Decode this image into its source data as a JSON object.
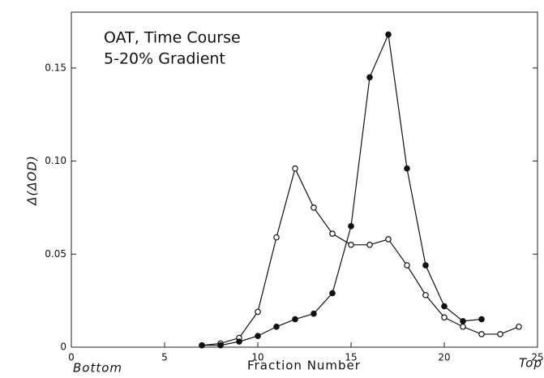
{
  "chart_data": {
    "type": "line",
    "title": "OAT, Time Course",
    "subtitle": "5-20% Gradient",
    "y_label": "Δ(ΔOD)",
    "x_label": "Fraction Number",
    "x_left_label": "Bottom",
    "x_right_label": "Top",
    "xlim": [
      0,
      25
    ],
    "xticks": [
      0,
      5,
      10,
      15,
      20,
      25
    ],
    "ylim": [
      0,
      0.18
    ],
    "yticks": [
      0,
      0.05,
      {
        "value": 0.1,
        "label": "0.10"
      },
      0.15
    ],
    "grid": false,
    "series": [
      {
        "color": "#111",
        "filled": false,
        "x": [
          7,
          8,
          9,
          10,
          11,
          12,
          13,
          14,
          15,
          16,
          17,
          18,
          19,
          20,
          21,
          22,
          23,
          24
        ],
        "values": [
          0.001,
          0.002,
          0.005,
          0.019,
          0.059,
          0.096,
          0.075,
          0.061,
          0.055,
          0.055,
          0.058,
          0.044,
          0.028,
          0.016,
          0.011,
          0.007,
          0.007,
          0.011
        ]
      },
      {
        "color": "#111",
        "filled": true,
        "x": [
          7,
          8,
          9,
          10,
          11,
          12,
          13,
          14,
          15,
          16,
          17,
          18,
          19,
          20,
          21,
          22
        ],
        "values": [
          0.001,
          0.001,
          0.003,
          0.006,
          0.011,
          0.015,
          0.018,
          0.029,
          0.065,
          0.145,
          0.168,
          0.096,
          0.044,
          0.022,
          0.014,
          0.015
        ]
      }
    ]
  }
}
